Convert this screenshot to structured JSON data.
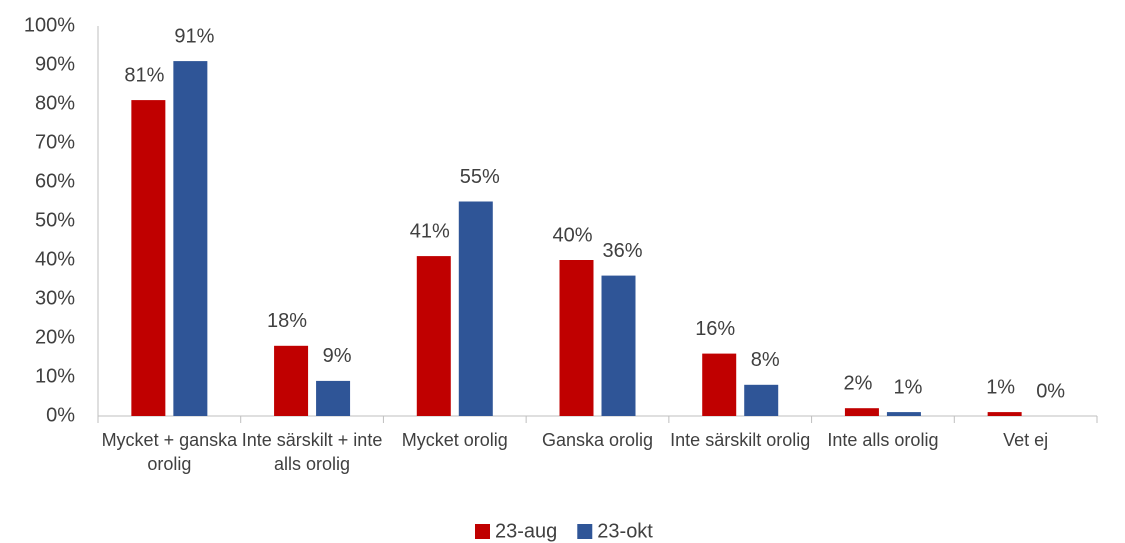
{
  "chart_data": {
    "type": "bar",
    "categories": [
      "Mycket + ganska orolig",
      "Inte särskilt + inte alls orolig",
      "Mycket orolig",
      "Ganska orolig",
      "Inte särskilt orolig",
      "Inte alls orolig",
      "Vet ej"
    ],
    "series": [
      {
        "name": "23-aug",
        "color": "#c00000",
        "values": [
          81,
          18,
          41,
          40,
          16,
          2,
          1
        ],
        "value_labels": [
          "81%",
          "18%",
          "41%",
          "40%",
          "16%",
          "2%",
          "1%"
        ]
      },
      {
        "name": "23-okt",
        "color": "#2f5597",
        "values": [
          91,
          9,
          55,
          36,
          8,
          1,
          0
        ],
        "value_labels": [
          "91%",
          "9%",
          "55%",
          "36%",
          "8%",
          "1%",
          "0%"
        ]
      }
    ],
    "ylim": [
      0,
      100
    ],
    "yticks": [
      {
        "value": 0,
        "label": "0%"
      },
      {
        "value": 10,
        "label": "10%"
      },
      {
        "value": 20,
        "label": "20%"
      },
      {
        "value": 30,
        "label": "30%"
      },
      {
        "value": 40,
        "label": "40%"
      },
      {
        "value": 50,
        "label": "50%"
      },
      {
        "value": 60,
        "label": "60%"
      },
      {
        "value": 70,
        "label": "70%"
      },
      {
        "value": 80,
        "label": "80%"
      },
      {
        "value": 90,
        "label": "90%"
      },
      {
        "value": 100,
        "label": "100%"
      }
    ],
    "grid": false,
    "legend": "bottom"
  }
}
